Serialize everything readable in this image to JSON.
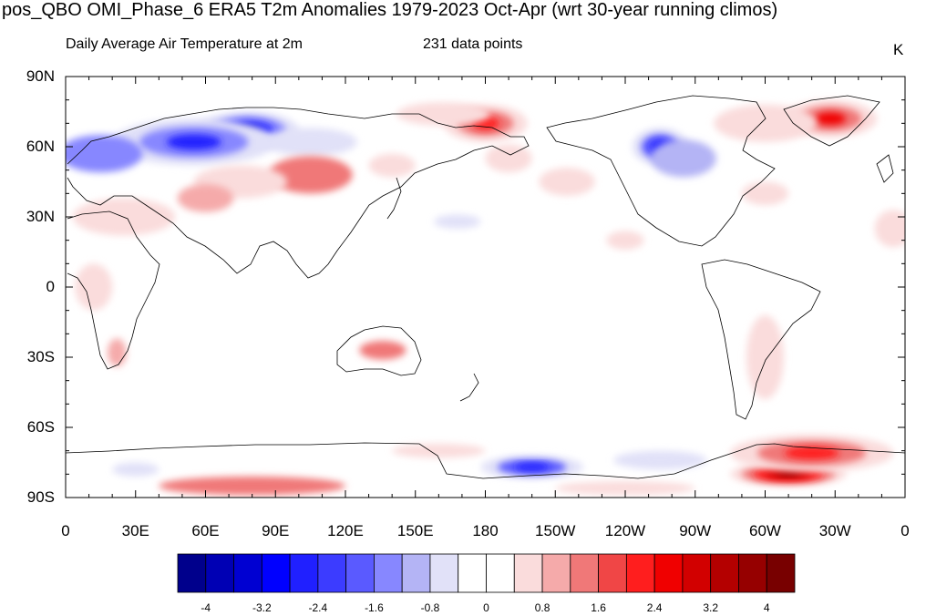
{
  "title": "pos_QBO OMI_Phase_6 ERA5 T2m Anomalies 1979-2023 Oct-Apr (wrt 30-year running climos)",
  "left_subtitle": "Daily Average Air Temperature at 2m",
  "center_subtitle": "231 data points",
  "units_label": "K",
  "lat_axis": {
    "labels": [
      "90N",
      "60N",
      "30N",
      "0",
      "30S",
      "60S",
      "90S"
    ],
    "values": [
      90,
      60,
      30,
      0,
      -30,
      -60,
      -90
    ]
  },
  "lon_axis": {
    "labels": [
      "0",
      "30E",
      "60E",
      "90E",
      "120E",
      "150E",
      "180",
      "150W",
      "120W",
      "90W",
      "60W",
      "30W",
      "0"
    ],
    "values": [
      0,
      30,
      60,
      90,
      120,
      150,
      180,
      210,
      240,
      270,
      300,
      330,
      360
    ]
  },
  "colorbar": {
    "colors": [
      "#00008c",
      "#0000b4",
      "#0000d2",
      "#0000ff",
      "#2020ff",
      "#3c3cff",
      "#5a5aff",
      "#8787ff",
      "#b4b4f5",
      "#e1e1f8",
      "#ffffff",
      "#ffffff",
      "#fadcdc",
      "#f5aaaa",
      "#f07878",
      "#f04646",
      "#ff1e1e",
      "#f00000",
      "#d20000",
      "#b40000",
      "#960000",
      "#780000"
    ],
    "tick_labels": [
      "-4",
      "-3.2",
      "-2.4",
      "-1.6",
      "-0.8",
      "0",
      "0.8",
      "1.6",
      "2.4",
      "3.2",
      "4"
    ],
    "tick_values": [
      -4,
      -3.2,
      -2.4,
      -1.6,
      -0.8,
      0,
      0.8,
      1.6,
      2.4,
      3.2,
      4
    ]
  },
  "anomalies": [
    {
      "lon": 78,
      "lat": 67,
      "value": -3.5,
      "rx": 22,
      "ry": 8
    },
    {
      "lon": 55,
      "lat": 62,
      "value": -2.5,
      "rx": 35,
      "ry": 10
    },
    {
      "lon": 15,
      "lat": 57,
      "value": -1.2,
      "rx": 18,
      "ry": 8
    },
    {
      "lon": 105,
      "lat": 62,
      "value": -0.5,
      "rx": 20,
      "ry": 6
    },
    {
      "lon": 255,
      "lat": 60,
      "value": -2.8,
      "rx": 12,
      "ry": 8
    },
    {
      "lon": 265,
      "lat": 55,
      "value": -1.0,
      "rx": 14,
      "ry": 8
    },
    {
      "lon": 168,
      "lat": 28,
      "value": -0.6,
      "rx": 10,
      "ry": 3
    },
    {
      "lon": 200,
      "lat": -77,
      "value": -2.8,
      "rx": 22,
      "ry": 5
    },
    {
      "lon": 255,
      "lat": -74,
      "value": -0.5,
      "rx": 20,
      "ry": 4
    },
    {
      "lon": 30,
      "lat": -78,
      "value": -0.5,
      "rx": 10,
      "ry": 3
    },
    {
      "lon": 180,
      "lat": 70,
      "value": 2.2,
      "rx": 18,
      "ry": 8
    },
    {
      "lon": 162,
      "lat": 74,
      "value": 0.5,
      "rx": 20,
      "ry": 5
    },
    {
      "lon": 328,
      "lat": 72,
      "value": 2.4,
      "rx": 20,
      "ry": 8
    },
    {
      "lon": 300,
      "lat": 70,
      "value": 0.7,
      "rx": 22,
      "ry": 8
    },
    {
      "lon": 105,
      "lat": 48,
      "value": 1.2,
      "rx": 18,
      "ry": 8
    },
    {
      "lon": 75,
      "lat": 45,
      "value": 0.8,
      "rx": 20,
      "ry": 7
    },
    {
      "lon": 60,
      "lat": 38,
      "value": 1.0,
      "rx": 12,
      "ry": 6
    },
    {
      "lon": 25,
      "lat": 30,
      "value": 0.7,
      "rx": 22,
      "ry": 8
    },
    {
      "lon": 140,
      "lat": 52,
      "value": 0.8,
      "rx": 10,
      "ry": 5
    },
    {
      "lon": 215,
      "lat": 45,
      "value": 0.6,
      "rx": 12,
      "ry": 6
    },
    {
      "lon": 240,
      "lat": 20,
      "value": 0.6,
      "rx": 8,
      "ry": 4
    },
    {
      "lon": 190,
      "lat": 55,
      "value": 0.5,
      "rx": 10,
      "ry": 6
    },
    {
      "lon": 300,
      "lat": 40,
      "value": 0.5,
      "rx": 10,
      "ry": 5
    },
    {
      "lon": 355,
      "lat": 25,
      "value": 0.5,
      "rx": 8,
      "ry": 8
    },
    {
      "lon": 136,
      "lat": -27,
      "value": 1.2,
      "rx": 10,
      "ry": 4
    },
    {
      "lon": 22,
      "lat": -28,
      "value": 1.0,
      "rx": 4,
      "ry": 6
    },
    {
      "lon": 12,
      "lat": 0,
      "value": 0.5,
      "rx": 8,
      "ry": 10
    },
    {
      "lon": 300,
      "lat": -30,
      "value": 0.5,
      "rx": 8,
      "ry": 18
    },
    {
      "lon": 310,
      "lat": -80,
      "value": 3.8,
      "rx": 25,
      "ry": 5
    },
    {
      "lon": 320,
      "lat": -71,
      "value": 2.2,
      "rx": 35,
      "ry": 8
    },
    {
      "lon": 80,
      "lat": -85,
      "value": 1.2,
      "rx": 40,
      "ry": 4
    },
    {
      "lon": 160,
      "lat": -70,
      "value": 0.6,
      "rx": 20,
      "ry": 3
    },
    {
      "lon": 240,
      "lat": -86,
      "value": 0.8,
      "rx": 30,
      "ry": 3
    }
  ]
}
